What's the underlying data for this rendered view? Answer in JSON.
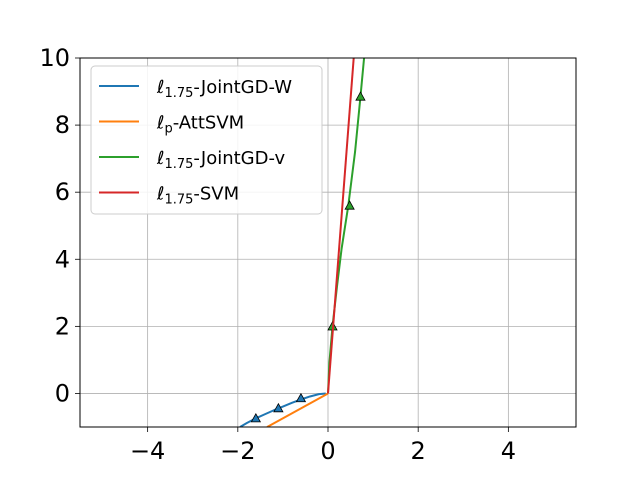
{
  "chart_data": {
    "type": "line",
    "title": "",
    "xlabel": "",
    "ylabel": "",
    "xlim": [
      -5.5,
      5.5
    ],
    "ylim": [
      -1,
      10
    ],
    "grid": true,
    "legend_position": "top-left",
    "x_ticks": [
      {
        "value": -4,
        "label": "−4"
      },
      {
        "value": -2,
        "label": "−2"
      },
      {
        "value": 0,
        "label": "0"
      },
      {
        "value": 2,
        "label": "2"
      },
      {
        "value": 4,
        "label": "4"
      }
    ],
    "y_ticks": [
      {
        "value": 0,
        "label": "0"
      },
      {
        "value": 2,
        "label": "2"
      },
      {
        "value": 4,
        "label": "4"
      },
      {
        "value": 6,
        "label": "6"
      },
      {
        "value": 8,
        "label": "8"
      },
      {
        "value": 10,
        "label": "10"
      }
    ],
    "series": [
      {
        "name": "ℓ1.75-JointGD-W",
        "legend": {
          "base": "ℓ",
          "sub": "1.75",
          "rest": "-JointGD-W"
        },
        "color": "#1f77b4",
        "x": [
          -1.95,
          -1.8,
          -1.6,
          -1.4,
          -1.2,
          -1.0,
          -0.8,
          -0.6,
          -0.4,
          -0.2,
          -0.05
        ],
        "y": [
          -1.0,
          -0.88,
          -0.74,
          -0.62,
          -0.5,
          -0.39,
          -0.28,
          -0.18,
          -0.09,
          -0.02,
          0.0
        ],
        "markers": [
          [
            -1.6,
            -0.74
          ],
          [
            -1.1,
            -0.44
          ],
          [
            -0.6,
            -0.14
          ]
        ]
      },
      {
        "name": "ℓp-AttSVM",
        "legend": {
          "base": "ℓ",
          "sub": "p",
          "rest": "-AttSVM"
        },
        "color": "#ff7f0e",
        "x": [
          -1.35,
          0.0
        ],
        "y": [
          -1.0,
          0.0
        ],
        "markers": []
      },
      {
        "name": "ℓ1.75-JointGD-v",
        "legend": {
          "base": "ℓ",
          "sub": "1.75",
          "rest": "-JointGD-v"
        },
        "color": "#2ca02c",
        "x": [
          0.0,
          0.03,
          0.1,
          0.2,
          0.3,
          0.45,
          0.6,
          0.72,
          0.8
        ],
        "y": [
          0.0,
          0.9,
          2.0,
          3.2,
          4.3,
          5.6,
          7.2,
          8.85,
          10.0
        ],
        "markers": [
          [
            0.1,
            2.0
          ],
          [
            0.48,
            5.6
          ],
          [
            0.72,
            8.85
          ]
        ]
      },
      {
        "name": "ℓ1.75-SVM",
        "legend": {
          "base": "ℓ",
          "sub": "1.75",
          "rest": "-SVM"
        },
        "color": "#d62728",
        "x": [
          0.0,
          0.57
        ],
        "y": [
          0.0,
          10.0
        ],
        "markers": []
      }
    ]
  }
}
